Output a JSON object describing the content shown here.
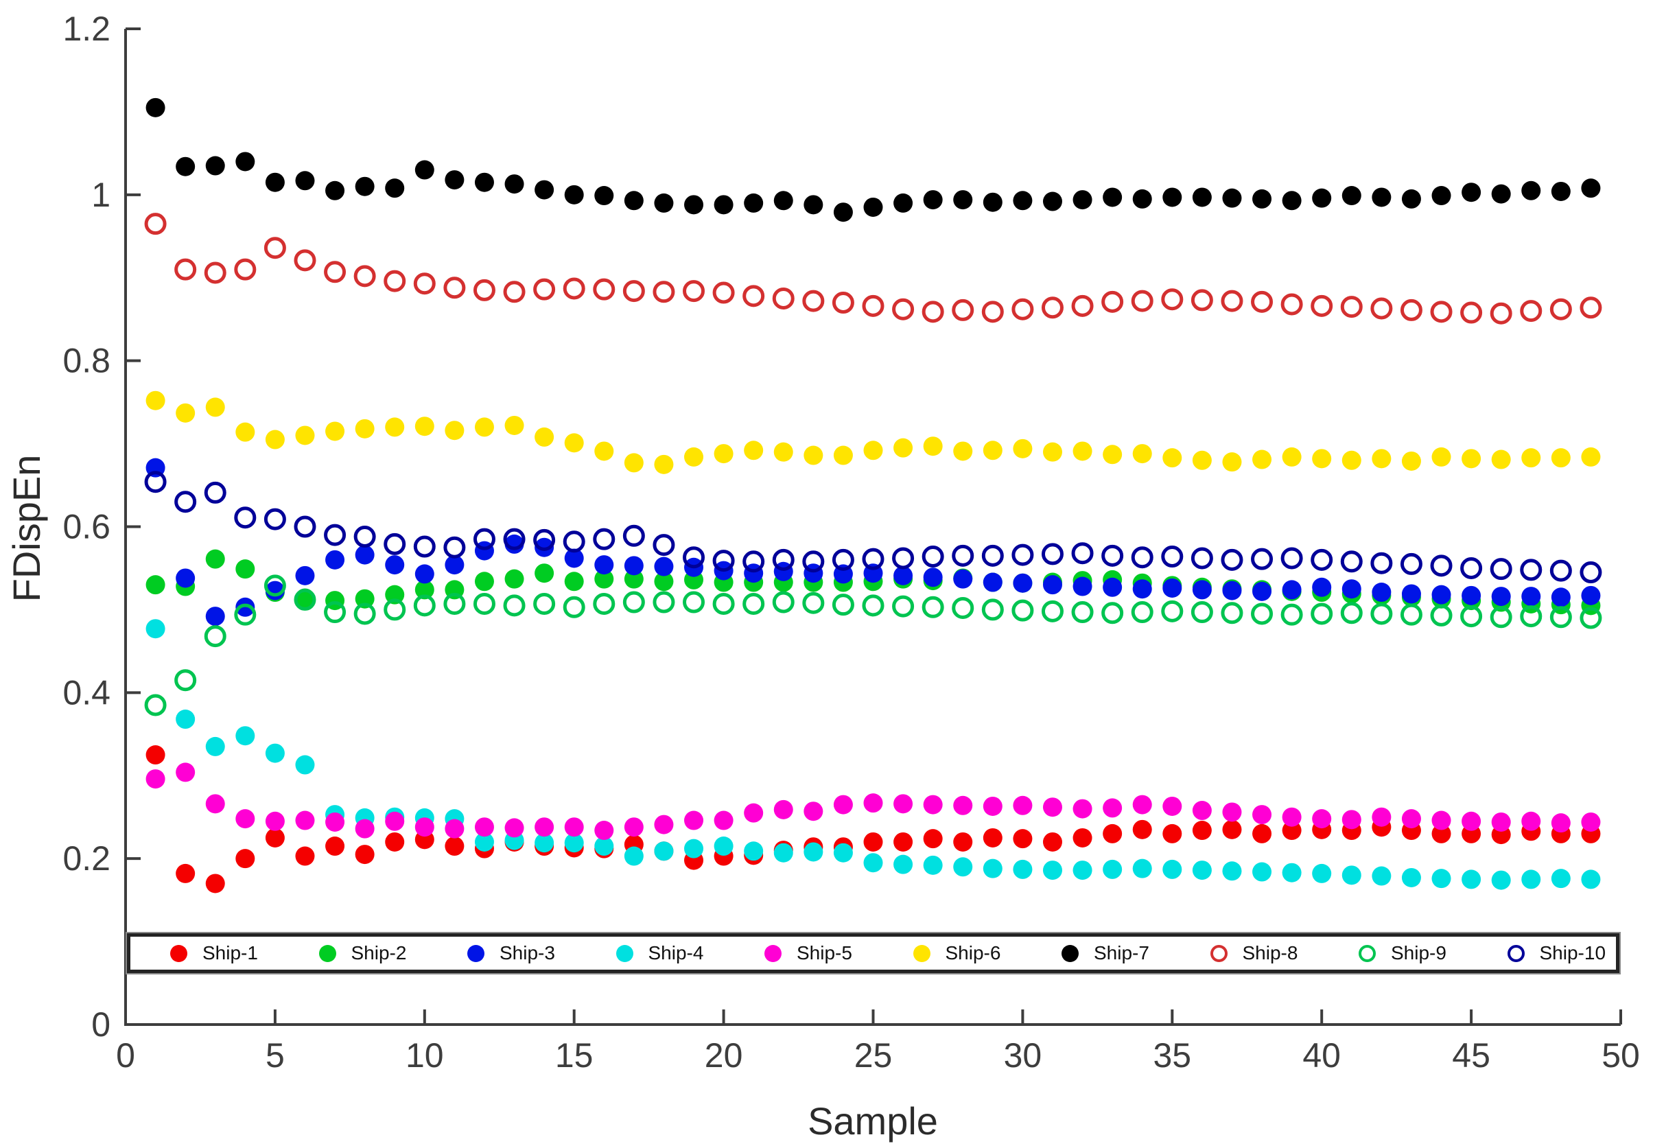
{
  "figure": {
    "background": "#ffffff",
    "axis_color": "#3d3d3d"
  },
  "chart_data": {
    "type": "scatter",
    "title": "",
    "xlabel": "Sample",
    "ylabel": "FDispEn",
    "xlim": [
      0,
      50
    ],
    "ylim": [
      0,
      1.2
    ],
    "grid": false,
    "legend_position": "bottom-inside-horizontal",
    "x_tick_labels": [
      "0",
      "5",
      "10",
      "15",
      "20",
      "25",
      "30",
      "35",
      "40",
      "45",
      "50"
    ],
    "x_tick_values": [
      0,
      5,
      10,
      15,
      20,
      25,
      30,
      35,
      40,
      45,
      50
    ],
    "y_tick_labels": [
      "0",
      "0.2",
      "0.4",
      "0.6",
      "0.8",
      "1",
      "1.2"
    ],
    "y_tick_values": [
      0,
      0.2,
      0.4,
      0.6,
      0.8,
      1,
      1.2
    ],
    "x": [
      1,
      2,
      3,
      4,
      5,
      6,
      7,
      8,
      9,
      10,
      11,
      12,
      13,
      14,
      15,
      16,
      17,
      18,
      19,
      20,
      21,
      22,
      23,
      24,
      25,
      26,
      27,
      28,
      29,
      30,
      31,
      32,
      33,
      34,
      35,
      36,
      37,
      38,
      39,
      40,
      41,
      42,
      43,
      44,
      45,
      46,
      47,
      48,
      49
    ],
    "series": [
      {
        "name": "Ship-1",
        "color": "#f40000",
        "marker": "filled",
        "values": [
          0.325,
          0.182,
          0.17,
          0.2,
          0.225,
          0.203,
          0.215,
          0.205,
          0.22,
          0.223,
          0.215,
          0.212,
          0.22,
          0.215,
          0.213,
          0.212,
          0.217,
          0.209,
          0.198,
          0.203,
          0.204,
          0.21,
          0.214,
          0.214,
          0.22,
          0.22,
          0.224,
          0.22,
          0.225,
          0.224,
          0.22,
          0.225,
          0.23,
          0.235,
          0.23,
          0.234,
          0.235,
          0.23,
          0.234,
          0.235,
          0.234,
          0.238,
          0.234,
          0.23,
          0.23,
          0.229,
          0.233,
          0.23,
          0.23
        ]
      },
      {
        "name": "Ship-2",
        "color": "#00cc22",
        "marker": "filled",
        "values": [
          0.53,
          0.528,
          0.561,
          0.549,
          0.521,
          0.514,
          0.511,
          0.513,
          0.518,
          0.524,
          0.524,
          0.534,
          0.537,
          0.544,
          0.534,
          0.537,
          0.537,
          0.534,
          0.536,
          0.533,
          0.533,
          0.533,
          0.533,
          0.533,
          0.534,
          0.537,
          0.535,
          0.538,
          0.533,
          0.532,
          0.533,
          0.535,
          0.536,
          0.532,
          0.529,
          0.527,
          0.525,
          0.524,
          0.522,
          0.521,
          0.519,
          0.517,
          0.515,
          0.513,
          0.511,
          0.509,
          0.507,
          0.506,
          0.505
        ]
      },
      {
        "name": "Ship-3",
        "color": "#0014e6",
        "marker": "filled",
        "values": [
          0.671,
          0.538,
          0.492,
          0.503,
          0.523,
          0.541,
          0.56,
          0.566,
          0.554,
          0.543,
          0.554,
          0.571,
          0.579,
          0.575,
          0.562,
          0.554,
          0.553,
          0.552,
          0.551,
          0.547,
          0.544,
          0.546,
          0.544,
          0.543,
          0.544,
          0.541,
          0.539,
          0.537,
          0.533,
          0.532,
          0.53,
          0.528,
          0.527,
          0.525,
          0.526,
          0.524,
          0.523,
          0.522,
          0.524,
          0.527,
          0.525,
          0.521,
          0.519,
          0.518,
          0.517,
          0.516,
          0.516,
          0.515,
          0.517
        ]
      },
      {
        "name": "Ship-4",
        "color": "#00e0e0",
        "marker": "filled",
        "values": [
          0.477,
          0.368,
          0.335,
          0.348,
          0.327,
          0.313,
          0.253,
          0.249,
          0.25,
          0.249,
          0.248,
          0.22,
          0.222,
          0.219,
          0.219,
          0.215,
          0.203,
          0.209,
          0.212,
          0.215,
          0.209,
          0.207,
          0.208,
          0.207,
          0.195,
          0.193,
          0.192,
          0.19,
          0.188,
          0.187,
          0.186,
          0.186,
          0.187,
          0.188,
          0.187,
          0.186,
          0.185,
          0.184,
          0.183,
          0.182,
          0.18,
          0.179,
          0.177,
          0.176,
          0.175,
          0.174,
          0.175,
          0.176,
          0.175
        ]
      },
      {
        "name": "Ship-5",
        "color": "#ff00d4",
        "marker": "filled",
        "values": [
          0.296,
          0.304,
          0.266,
          0.248,
          0.245,
          0.246,
          0.244,
          0.236,
          0.245,
          0.238,
          0.236,
          0.238,
          0.237,
          0.238,
          0.238,
          0.234,
          0.238,
          0.241,
          0.246,
          0.246,
          0.255,
          0.259,
          0.257,
          0.265,
          0.267,
          0.266,
          0.265,
          0.264,
          0.263,
          0.264,
          0.262,
          0.26,
          0.261,
          0.265,
          0.263,
          0.258,
          0.256,
          0.253,
          0.25,
          0.248,
          0.247,
          0.25,
          0.248,
          0.246,
          0.245,
          0.244,
          0.245,
          0.243,
          0.244
        ]
      },
      {
        "name": "Ship-6",
        "color": "#ffe400",
        "marker": "filled",
        "values": [
          0.752,
          0.737,
          0.744,
          0.714,
          0.705,
          0.71,
          0.715,
          0.718,
          0.72,
          0.721,
          0.716,
          0.72,
          0.722,
          0.708,
          0.701,
          0.691,
          0.677,
          0.675,
          0.684,
          0.688,
          0.692,
          0.69,
          0.686,
          0.686,
          0.692,
          0.695,
          0.697,
          0.691,
          0.692,
          0.694,
          0.69,
          0.691,
          0.687,
          0.688,
          0.683,
          0.68,
          0.678,
          0.681,
          0.684,
          0.682,
          0.68,
          0.682,
          0.679,
          0.684,
          0.682,
          0.681,
          0.683,
          0.683,
          0.684
        ]
      },
      {
        "name": "Ship-7",
        "color": "#000000",
        "marker": "filled",
        "values": [
          1.105,
          1.034,
          1.035,
          1.04,
          1.015,
          1.017,
          1.005,
          1.01,
          1.008,
          1.03,
          1.018,
          1.015,
          1.013,
          1.006,
          1.0,
          0.999,
          0.993,
          0.99,
          0.988,
          0.988,
          0.99,
          0.993,
          0.988,
          0.979,
          0.985,
          0.99,
          0.994,
          0.994,
          0.991,
          0.993,
          0.992,
          0.994,
          0.997,
          0.995,
          0.997,
          0.997,
          0.996,
          0.995,
          0.993,
          0.996,
          0.999,
          0.997,
          0.995,
          0.999,
          1.003,
          1.001,
          1.005,
          1.004,
          1.008
        ]
      },
      {
        "name": "Ship-8",
        "color": "#d43030",
        "marker": "open",
        "values": [
          0.965,
          0.91,
          0.906,
          0.91,
          0.936,
          0.921,
          0.907,
          0.902,
          0.896,
          0.893,
          0.888,
          0.885,
          0.883,
          0.886,
          0.887,
          0.886,
          0.884,
          0.883,
          0.884,
          0.882,
          0.878,
          0.875,
          0.872,
          0.87,
          0.866,
          0.862,
          0.859,
          0.861,
          0.859,
          0.862,
          0.864,
          0.866,
          0.871,
          0.872,
          0.874,
          0.873,
          0.872,
          0.871,
          0.868,
          0.866,
          0.865,
          0.863,
          0.861,
          0.859,
          0.858,
          0.857,
          0.86,
          0.862,
          0.864
        ]
      },
      {
        "name": "Ship-9",
        "color": "#00c450",
        "marker": "open",
        "values": [
          0.385,
          0.415,
          0.468,
          0.494,
          0.529,
          0.512,
          0.497,
          0.495,
          0.5,
          0.505,
          0.507,
          0.507,
          0.505,
          0.507,
          0.503,
          0.507,
          0.509,
          0.509,
          0.509,
          0.507,
          0.507,
          0.509,
          0.508,
          0.506,
          0.505,
          0.504,
          0.503,
          0.502,
          0.5,
          0.499,
          0.498,
          0.497,
          0.496,
          0.497,
          0.498,
          0.497,
          0.496,
          0.495,
          0.494,
          0.495,
          0.496,
          0.495,
          0.494,
          0.493,
          0.492,
          0.491,
          0.492,
          0.491,
          0.49
        ]
      },
      {
        "name": "Ship-10",
        "color": "#000099",
        "marker": "open",
        "values": [
          0.654,
          0.63,
          0.641,
          0.611,
          0.609,
          0.6,
          0.59,
          0.588,
          0.579,
          0.576,
          0.575,
          0.585,
          0.585,
          0.584,
          0.582,
          0.585,
          0.589,
          0.578,
          0.563,
          0.559,
          0.558,
          0.56,
          0.558,
          0.56,
          0.561,
          0.562,
          0.564,
          0.565,
          0.565,
          0.566,
          0.567,
          0.568,
          0.565,
          0.563,
          0.564,
          0.562,
          0.56,
          0.561,
          0.562,
          0.56,
          0.558,
          0.556,
          0.555,
          0.553,
          0.55,
          0.549,
          0.548,
          0.547,
          0.545
        ]
      }
    ]
  }
}
